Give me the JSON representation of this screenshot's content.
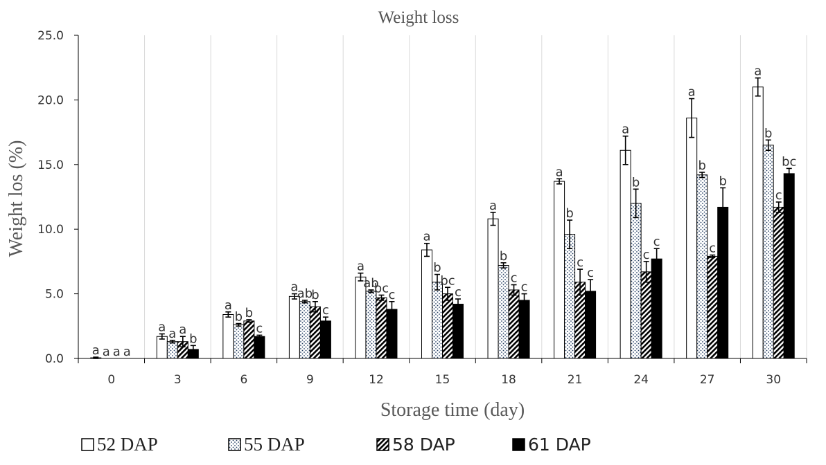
{
  "chart_data": {
    "type": "bar",
    "title": "Weight loss",
    "xlabel": "Storage time (day)",
    "ylabel": "Weight los (%)",
    "ylim": [
      0,
      25
    ],
    "yticks": [
      "0.0",
      "5.0",
      "10.0",
      "15.0",
      "20.0",
      "25.0"
    ],
    "grid": "vertical",
    "legend_position": "bottom",
    "categories": [
      "0",
      "3",
      "6",
      "9",
      "12",
      "15",
      "18",
      "21",
      "24",
      "27",
      "30"
    ],
    "series": [
      {
        "name": "52 DAP",
        "pattern": "open",
        "values": [
          0.05,
          1.7,
          3.4,
          4.8,
          6.3,
          8.4,
          10.8,
          13.7,
          16.1,
          18.6,
          21.0
        ],
        "errors": [
          0.05,
          0.2,
          0.2,
          0.2,
          0.3,
          0.5,
          0.5,
          0.2,
          1.1,
          1.5,
          0.7
        ],
        "letters": [
          "a",
          "a",
          "a",
          "a",
          "a",
          "a",
          "a",
          "a",
          "a",
          "a",
          "a"
        ]
      },
      {
        "name": "55 DAP",
        "pattern": "dotted",
        "values": [
          0,
          1.3,
          2.6,
          4.4,
          5.2,
          5.9,
          7.2,
          9.6,
          12.0,
          14.2,
          16.5
        ],
        "errors": [
          0,
          0.1,
          0.1,
          0.1,
          0.1,
          0.6,
          0.2,
          1.1,
          1.1,
          0.2,
          0.4
        ],
        "letters": [
          "a",
          "a",
          "b",
          "ab",
          "ab",
          "b",
          "b",
          "b",
          "b",
          "b",
          "b"
        ]
      },
      {
        "name": "58 DAP",
        "pattern": "hatched",
        "values": [
          0,
          1.3,
          2.9,
          4.0,
          4.7,
          5.0,
          5.3,
          5.9,
          6.7,
          7.9,
          11.7
        ],
        "errors": [
          0,
          0.4,
          0.1,
          0.4,
          0.2,
          0.5,
          0.4,
          1.0,
          0.8,
          0.1,
          0.4
        ],
        "letters": [
          "a",
          "a",
          "b",
          "b",
          "bc",
          "bc",
          "c",
          "c",
          "c",
          "c",
          "c"
        ]
      },
      {
        "name": "61 DAP",
        "pattern": "solid",
        "values": [
          0,
          0.7,
          1.7,
          2.9,
          3.8,
          4.2,
          4.5,
          5.2,
          7.7,
          11.7,
          14.3
        ],
        "errors": [
          0,
          0.3,
          0.1,
          0.3,
          0.6,
          0.4,
          0.5,
          0.9,
          0.8,
          1.5,
          0.4
        ],
        "letters": [
          "a",
          "b",
          "c",
          "c",
          "c",
          "c",
          "c",
          "c",
          "c",
          "b",
          "bc"
        ]
      }
    ],
    "colors": {
      "outline": "#000000",
      "dot": "#1f3a5f",
      "grid": "#d9d9d9",
      "axis": "#000000"
    }
  }
}
